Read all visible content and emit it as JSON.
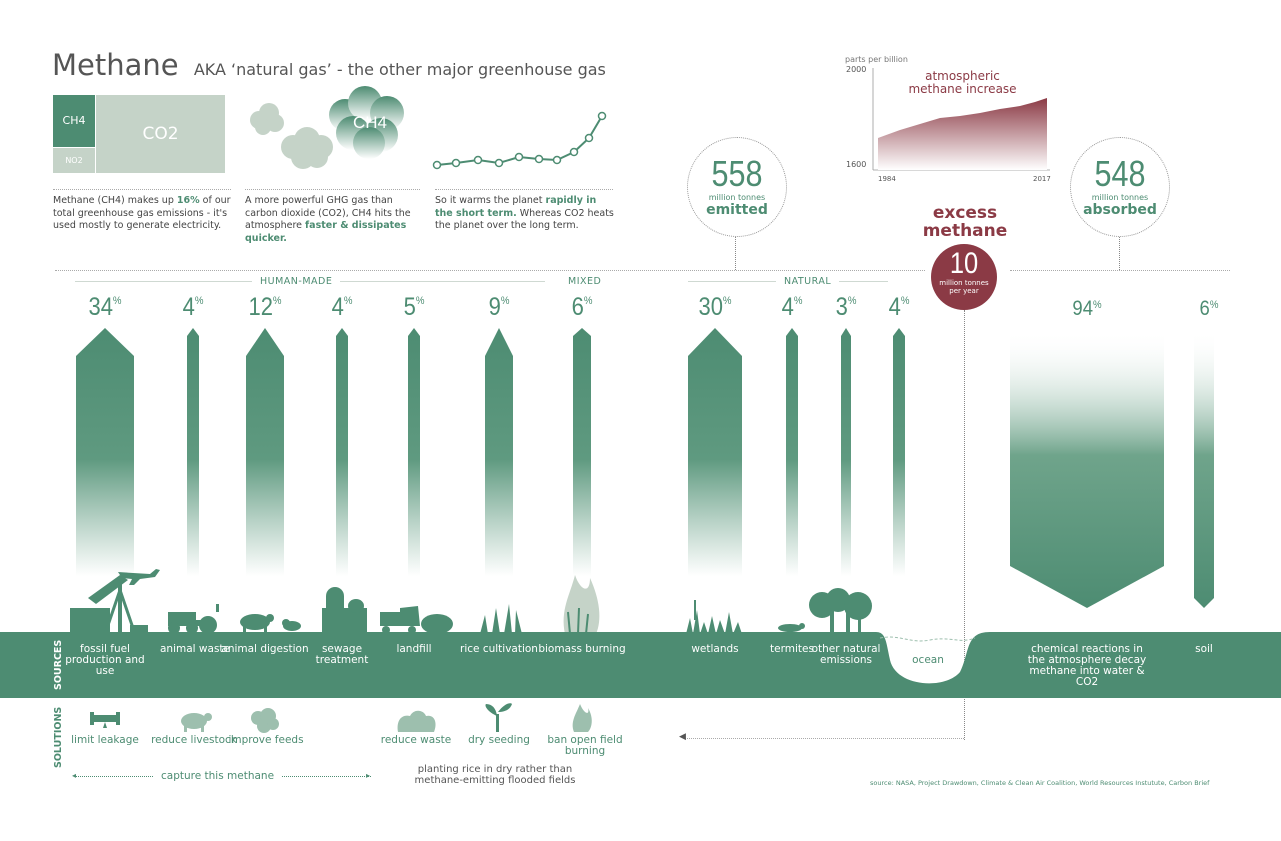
{
  "title": {
    "main": "Methane",
    "sub": "AKA ‘natural gas’ - the other major greenhouse gas"
  },
  "treemap": {
    "ch4": "CH4",
    "co2": "CO2",
    "no2": "NO2"
  },
  "clouds": {
    "ch4": "CH4"
  },
  "intro": {
    "p1_a": "Methane (CH4) makes up ",
    "p1_b": "16%",
    "p1_c": " of our total greenhouse gas emissions - it's used mostly to generate electricity.",
    "p2_a": "A more powerful GHG gas than carbon dioxide (CO2), CH4 hits the atmosphere ",
    "p2_b": "faster & dissipates quicker.",
    "p3_a": "So it warms the planet ",
    "p3_b": "rapidly in the short term.",
    "p3_c": " Whereas CO2 heats the planet over the long term."
  },
  "emitted": {
    "value": "558",
    "unit": "million tonnes",
    "label": "emitted"
  },
  "absorbed": {
    "value": "548",
    "unit": "million tonnes",
    "label": "absorbed"
  },
  "excess": {
    "label1": "excess",
    "label2": "methane",
    "value": "10",
    "unit": "million tonnes per year"
  },
  "mini_chart": {
    "unit": "parts per billion",
    "title1": "atmospheric",
    "title2": "methane increase",
    "y_top": "2000",
    "y_bottom": "1600",
    "x_start": "1984",
    "x_end": "2017"
  },
  "categories": {
    "human": "HUMAN-MADE",
    "mixed": "MIXED",
    "natural": "NATURAL"
  },
  "sources": [
    {
      "pct": "34",
      "label": "fossil fuel production and use"
    },
    {
      "pct": "4",
      "label": "animal waste"
    },
    {
      "pct": "12",
      "label": "animal digestion"
    },
    {
      "pct": "4",
      "label": "sewage treatment"
    },
    {
      "pct": "5",
      "label": "landfill"
    },
    {
      "pct": "9",
      "label": "rice cultivation"
    },
    {
      "pct": "6",
      "label": "biomass burning"
    },
    {
      "pct": "30",
      "label": "wetlands"
    },
    {
      "pct": "4",
      "label": "termites"
    },
    {
      "pct": "3",
      "label": "other natural emissions"
    },
    {
      "pct": "4",
      "label": "ocean"
    }
  ],
  "sinks": [
    {
      "pct": "94",
      "label": "chemical reactions in the atmosphere decay methane into water & CO2"
    },
    {
      "pct": "6",
      "label": "soil"
    }
  ],
  "pct_symbol": "%",
  "side_labels": {
    "sources": "SOURCES",
    "solutions": "SOLUTIONS"
  },
  "solutions": [
    {
      "label": "limit leakage",
      "icon": "pipe-icon"
    },
    {
      "label": "reduce livestock",
      "icon": "cow-icon"
    },
    {
      "label": "improve feeds",
      "icon": "feed-icon"
    },
    {
      "label": "reduce waste",
      "icon": "waste-icon"
    },
    {
      "label": "dry seeding",
      "icon": "seedling-icon"
    },
    {
      "label": "ban open field burning",
      "icon": "fire-icon"
    }
  ],
  "capture_note": "capture this methane",
  "rice_note": "planting rice in dry rather than methane-emitting flooded fields",
  "source_note": "source: NASA, Project Drawdown, Climate & Clean Air Coalition, World Resources Instutute, Carbon Brief",
  "colors": {
    "green": "#4d8c72",
    "maroon": "#8b3a45",
    "pale": "#c5d3c8"
  }
}
